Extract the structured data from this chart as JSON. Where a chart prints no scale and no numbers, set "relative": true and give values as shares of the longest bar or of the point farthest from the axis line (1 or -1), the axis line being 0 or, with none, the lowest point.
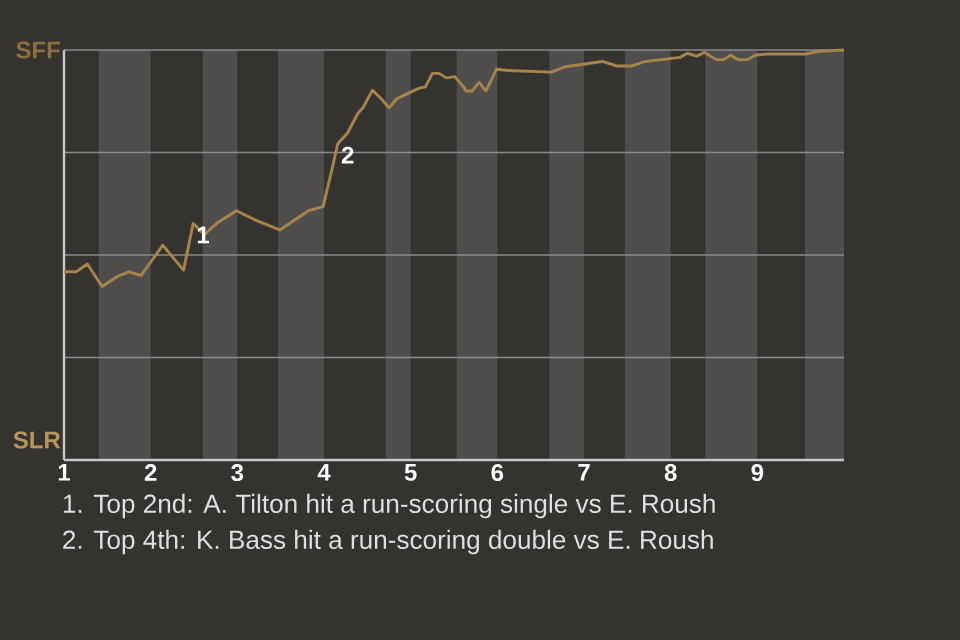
{
  "chart_data": {
    "type": "line",
    "relative": true,
    "x": [
      1,
      1.14,
      1.27,
      1.44,
      1.61,
      1.75,
      1.89,
      2.14,
      2.28,
      2.38,
      2.49,
      2.62,
      2.78,
      2.99,
      3.21,
      3.49,
      3.82,
      3.99,
      4.09,
      4.16,
      4.27,
      4.39,
      4.45,
      4.56,
      4.66,
      4.75,
      4.84,
      4.97,
      5.1,
      5.17,
      5.25,
      5.33,
      5.41,
      5.51,
      5.61,
      5.64,
      5.71,
      5.79,
      5.87,
      5.99,
      6.12,
      6.62,
      6.78,
      6.95,
      7.21,
      7.38,
      7.55,
      7.71,
      7.99,
      8.11,
      8.19,
      8.3,
      8.39,
      8.53,
      8.61,
      8.69,
      8.78,
      8.89,
      8.97,
      9.09,
      9.56,
      9.71,
      10
    ],
    "series": [
      {
        "color": "#a6844a",
        "values": [
          0.459,
          0.459,
          0.478,
          0.423,
          0.447,
          0.459,
          0.45,
          0.524,
          0.488,
          0.463,
          0.577,
          0.55,
          0.58,
          0.608,
          0.585,
          0.561,
          0.608,
          0.618,
          0.707,
          0.772,
          0.797,
          0.845,
          0.859,
          0.902,
          0.881,
          0.859,
          0.881,
          0.894,
          0.907,
          0.91,
          0.943,
          0.943,
          0.932,
          0.935,
          0.91,
          0.9,
          0.9,
          0.921,
          0.9,
          0.953,
          0.95,
          0.946,
          0.959,
          0.964,
          0.972,
          0.961,
          0.961,
          0.972,
          0.979,
          0.982,
          0.992,
          0.985,
          0.994,
          0.976,
          0.976,
          0.987,
          0.976,
          0.977,
          0.987,
          0.99,
          0.99,
          0.997,
          1
        ]
      }
    ],
    "xlim": [
      1,
      10
    ],
    "xticks": [
      1,
      2,
      3,
      4,
      5,
      6,
      7,
      8,
      9
    ],
    "grid": "y",
    "bands": [
      {
        "axis": "x",
        "from": 1.4,
        "to": 2,
        "color": "#4f4e4d"
      },
      {
        "axis": "x",
        "from": 2.6,
        "to": 3,
        "color": "#4f4e4d"
      },
      {
        "axis": "x",
        "from": 3.47,
        "to": 4,
        "color": "#4f4e4d"
      },
      {
        "axis": "x",
        "from": 4.71,
        "to": 5,
        "color": "#4f4e4d"
      },
      {
        "axis": "x",
        "from": 5.53,
        "to": 6,
        "color": "#4f4e4d"
      },
      {
        "axis": "x",
        "from": 6.6,
        "to": 7,
        "color": "#4f4e4d"
      },
      {
        "axis": "x",
        "from": 7.47,
        "to": 8,
        "color": "#4f4e4d"
      },
      {
        "axis": "x",
        "from": 8.4,
        "to": 9,
        "color": "#4f4e4d"
      },
      {
        "axis": "x",
        "from": 9.55,
        "to": 10,
        "color": "#4f4e4d"
      }
    ],
    "annotations": [
      "SFF",
      "SLR",
      {
        "text": "1",
        "x": 2.49,
        "y": 0.577
      },
      {
        "text": "2",
        "x": 4.16,
        "y": 0.772
      },
      "1. Top 2nd: A. Tilton hit a run-scoring single vs E. Roush",
      "2. Top 4th: K. Bass hit a run-scoring double vs E. Roush"
    ],
    "marker": "none",
    "line_style": "solid"
  }
}
